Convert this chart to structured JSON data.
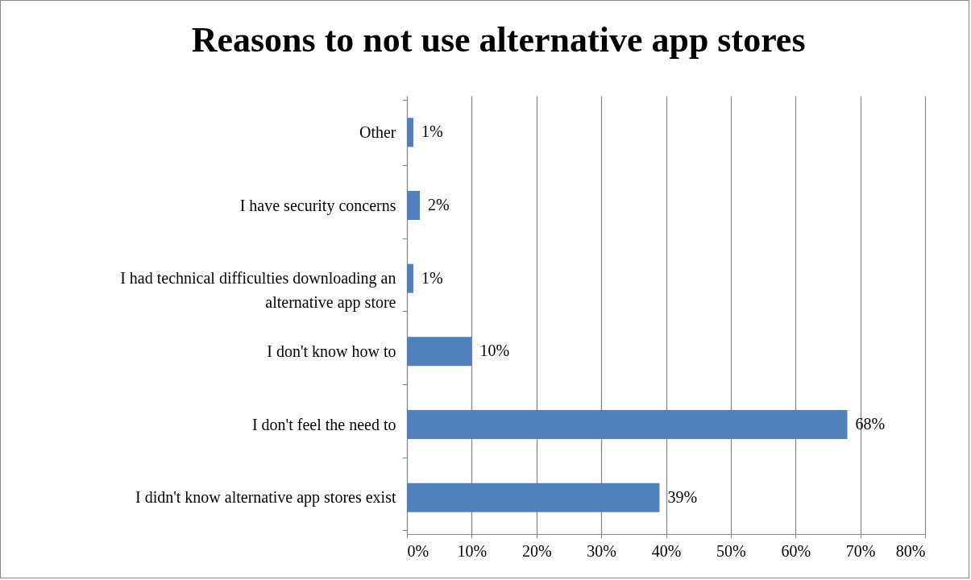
{
  "chart_data": {
    "type": "bar",
    "orientation": "horizontal",
    "title": "Reasons to not use alternative app stores",
    "categories": [
      "Other",
      "I have security concerns",
      "I had technical difficulties downloading an alternative app store",
      "I don't know how to",
      "I don't feel the need to",
      "I didn't know alternative app stores exist"
    ],
    "values": [
      1,
      2,
      1,
      10,
      68,
      39
    ],
    "value_labels": [
      "1%",
      "2%",
      "1%",
      "10%",
      "68%",
      "39%"
    ],
    "color": "#4f81bd",
    "grid": "x",
    "xlim": [
      0,
      80
    ],
    "xticks": [
      {
        "value": 0,
        "label": "0%"
      },
      {
        "value": 10,
        "label": "10%"
      },
      {
        "value": 20,
        "label": "20%"
      },
      {
        "value": 30,
        "label": "30%"
      },
      {
        "value": 40,
        "label": "40%"
      },
      {
        "value": 50,
        "label": "50%"
      },
      {
        "value": 60,
        "label": "60%"
      },
      {
        "value": 70,
        "label": "70%"
      },
      {
        "value": 80,
        "label": "80%"
      }
    ]
  }
}
